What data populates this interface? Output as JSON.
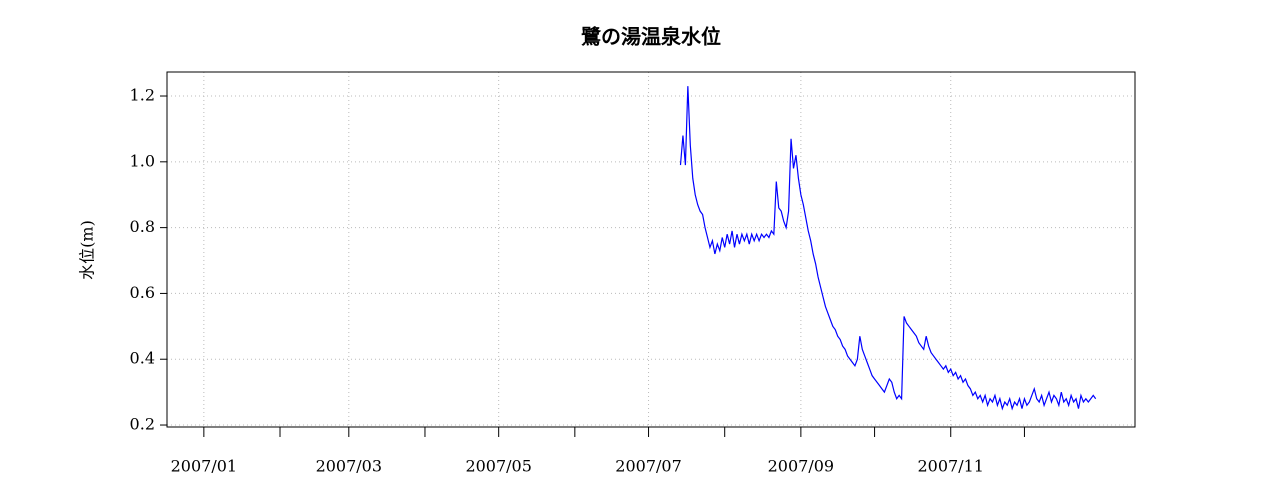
{
  "chart_data": {
    "type": "line",
    "title": "鷺の湯温泉水位",
    "ylabel": "水位(m)",
    "color": "#0000ff",
    "grid": true,
    "xlim": [
      -15,
      379
    ],
    "ylim": [
      0.194,
      1.273
    ],
    "xticks": [
      {
        "value": 0,
        "label": "2007/01"
      },
      {
        "value": 59,
        "label": "2007/03"
      },
      {
        "value": 120,
        "label": "2007/05"
      },
      {
        "value": 181,
        "label": "2007/07"
      },
      {
        "value": 243,
        "label": "2007/09"
      },
      {
        "value": 304,
        "label": "2007/11"
      }
    ],
    "xminorticks": [
      31,
      90,
      151,
      212,
      273,
      334
    ],
    "yticks": [
      0.2,
      0.4,
      0.6,
      0.8,
      {
        "value": 1,
        "label": "1.0"
      },
      1.2
    ],
    "x": [
      194,
      195,
      196,
      197,
      198,
      199,
      200,
      201,
      202,
      203,
      204,
      205,
      206,
      207,
      208,
      209,
      210,
      211,
      212,
      213,
      214,
      215,
      216,
      217,
      218,
      219,
      220,
      221,
      222,
      223,
      224,
      225,
      226,
      227,
      228,
      229,
      230,
      231,
      232,
      233,
      234,
      235,
      236,
      237,
      238,
      239,
      240,
      241,
      242,
      243,
      244,
      245,
      246,
      247,
      248,
      249,
      250,
      251,
      252,
      253,
      254,
      255,
      256,
      257,
      258,
      259,
      260,
      261,
      262,
      263,
      264,
      265,
      266,
      267,
      268,
      269,
      270,
      271,
      272,
      273,
      274,
      275,
      276,
      277,
      278,
      279,
      280,
      281,
      282,
      283,
      284,
      285,
      286,
      287,
      288,
      289,
      290,
      291,
      292,
      293,
      294,
      295,
      296,
      297,
      298,
      299,
      300,
      301,
      302,
      303,
      304,
      305,
      306,
      307,
      308,
      309,
      310,
      311,
      312,
      313,
      314,
      315,
      316,
      317,
      318,
      319,
      320,
      321,
      322,
      323,
      324,
      325,
      326,
      327,
      328,
      329,
      330,
      331,
      332,
      333,
      334,
      335,
      336,
      337,
      338,
      339,
      340,
      341,
      342,
      343,
      344,
      345,
      346,
      347,
      348,
      349,
      350,
      351,
      352,
      353,
      354,
      355,
      356,
      357,
      358,
      359,
      360,
      361,
      362,
      363
    ],
    "values": [
      0.99,
      1.08,
      0.99,
      1.23,
      1.05,
      0.95,
      0.9,
      0.87,
      0.85,
      0.84,
      0.8,
      0.77,
      0.74,
      0.76,
      0.72,
      0.75,
      0.73,
      0.77,
      0.74,
      0.78,
      0.75,
      0.79,
      0.74,
      0.78,
      0.75,
      0.78,
      0.76,
      0.78,
      0.75,
      0.78,
      0.76,
      0.78,
      0.76,
      0.78,
      0.77,
      0.78,
      0.77,
      0.79,
      0.78,
      0.94,
      0.86,
      0.85,
      0.82,
      0.8,
      0.85,
      1.07,
      0.98,
      1.02,
      0.95,
      0.9,
      0.87,
      0.83,
      0.79,
      0.76,
      0.72,
      0.69,
      0.65,
      0.62,
      0.59,
      0.56,
      0.54,
      0.52,
      0.5,
      0.49,
      0.47,
      0.46,
      0.44,
      0.43,
      0.41,
      0.4,
      0.39,
      0.38,
      0.4,
      0.47,
      0.43,
      0.41,
      0.39,
      0.37,
      0.35,
      0.34,
      0.33,
      0.32,
      0.31,
      0.3,
      0.32,
      0.34,
      0.33,
      0.3,
      0.28,
      0.29,
      0.28,
      0.53,
      0.51,
      0.5,
      0.49,
      0.48,
      0.47,
      0.45,
      0.44,
      0.43,
      0.47,
      0.44,
      0.42,
      0.41,
      0.4,
      0.39,
      0.38,
      0.37,
      0.38,
      0.36,
      0.37,
      0.35,
      0.36,
      0.34,
      0.35,
      0.33,
      0.34,
      0.32,
      0.31,
      0.29,
      0.3,
      0.28,
      0.29,
      0.27,
      0.29,
      0.26,
      0.28,
      0.27,
      0.29,
      0.26,
      0.28,
      0.25,
      0.27,
      0.26,
      0.28,
      0.25,
      0.27,
      0.26,
      0.28,
      0.25,
      0.28,
      0.26,
      0.27,
      0.29,
      0.31,
      0.28,
      0.27,
      0.29,
      0.26,
      0.28,
      0.3,
      0.27,
      0.29,
      0.28,
      0.26,
      0.3,
      0.27,
      0.28,
      0.26,
      0.29,
      0.27,
      0.28,
      0.25,
      0.29,
      0.27,
      0.28,
      0.27,
      0.28,
      0.29,
      0.28
    ]
  }
}
